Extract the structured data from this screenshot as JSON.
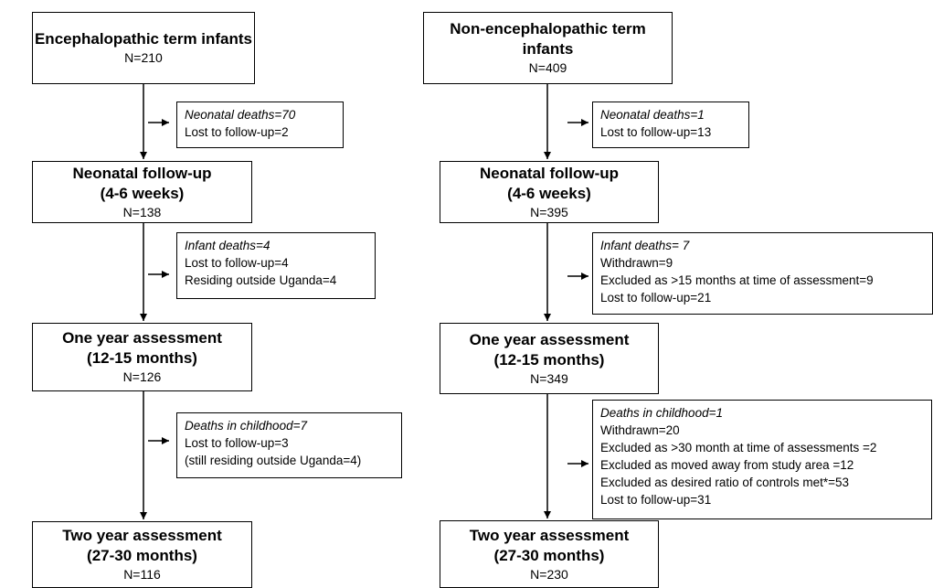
{
  "left": {
    "stages": [
      {
        "title": [
          "Encephalopathic term infants"
        ],
        "n": "N=210"
      },
      {
        "title": [
          "Neonatal follow-up",
          "(4-6 weeks)"
        ],
        "n": "N=138"
      },
      {
        "title": [
          "One year assessment",
          "(12-15 months)"
        ],
        "n": "N=126"
      },
      {
        "title": [
          "Two year assessment",
          "(27-30 months)"
        ],
        "n": "N=116"
      }
    ],
    "exclusions": [
      {
        "lines": [
          "Neonatal deaths=70",
          "Lost to follow-up=2"
        ]
      },
      {
        "lines": [
          "Infant deaths=4",
          "Lost to follow-up=4",
          "Residing outside Uganda=4"
        ]
      },
      {
        "lines": [
          "Deaths in childhood=7",
          "Lost to follow-up=3",
          "(still residing outside Uganda=4)"
        ]
      }
    ]
  },
  "right": {
    "stages": [
      {
        "title": [
          "Non-encephalopathic term infants"
        ],
        "n": "N=409"
      },
      {
        "title": [
          "Neonatal follow-up",
          "(4-6 weeks)"
        ],
        "n": "N=395"
      },
      {
        "title": [
          "One year assessment",
          "(12-15 months)"
        ],
        "n": "N=349"
      },
      {
        "title": [
          "Two year assessment",
          "(27-30 months)"
        ],
        "n": "N=230"
      }
    ],
    "exclusions": [
      {
        "lines": [
          "Neonatal deaths=1",
          "Lost to follow-up=13"
        ]
      },
      {
        "lines": [
          "Infant deaths= 7",
          "Withdrawn=9",
          "Excluded as >15 months at time of assessment=9",
          "Lost to follow-up=21"
        ]
      },
      {
        "lines": [
          "Deaths in childhood=1",
          "Withdrawn=20",
          "Excluded as >30 month at time of assessments =2",
          "Excluded as moved away from study area =12",
          "Excluded as desired ratio of controls met*=53",
          "Lost to follow-up=31"
        ]
      }
    ]
  }
}
